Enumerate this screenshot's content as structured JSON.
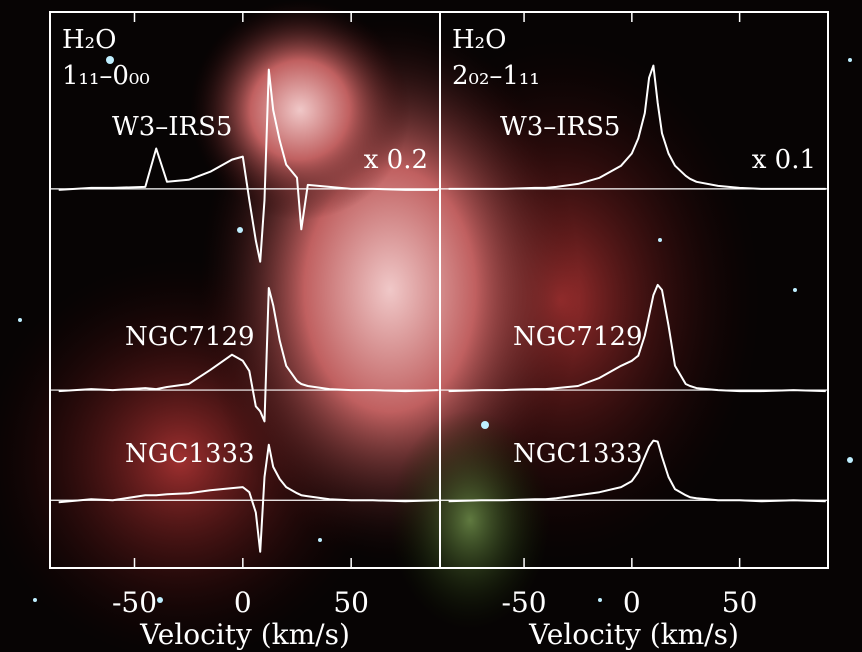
{
  "chart_data": [
    {
      "type": "line",
      "molecule": "H₂O",
      "transition": "1₁₁–0₀₀",
      "x_label": "Velocity (km/s)",
      "x": [
        -85,
        -70,
        -60,
        -45,
        -40,
        -35,
        -25,
        -15,
        -5,
        0,
        3,
        6,
        8,
        10,
        12,
        14,
        17,
        20,
        25,
        27,
        30,
        40,
        50,
        60,
        75,
        90
      ],
      "xlim": [
        -89,
        91
      ],
      "xticks": [
        -50,
        0,
        50
      ],
      "ylim": [
        0,
        5.5
      ],
      "series": [
        {
          "name": "W3–IRS5",
          "color": "#ffffff",
          "scale_label": "x 0.2",
          "baseline": 3.75,
          "values": [
            3.74,
            3.76,
            3.76,
            3.77,
            4.15,
            3.82,
            3.84,
            3.92,
            4.04,
            4.07,
            3.64,
            3.24,
            3.03,
            3.64,
            4.93,
            4.53,
            4.23,
            3.99,
            3.86,
            3.35,
            3.79,
            3.77,
            3.75,
            3.75,
            3.74,
            3.74
          ]
        },
        {
          "name": "NGC7129",
          "color": "#ffffff",
          "baseline": 1.76,
          "values": [
            1.75,
            1.77,
            1.76,
            1.78,
            1.77,
            1.79,
            1.82,
            1.96,
            2.11,
            2.05,
            1.95,
            1.6,
            1.55,
            1.45,
            2.77,
            2.6,
            2.25,
            2.0,
            1.85,
            1.82,
            1.8,
            1.77,
            1.76,
            1.76,
            1.75,
            1.76
          ]
        },
        {
          "name": "NGC1333",
          "color": "#ffffff",
          "baseline": 0.67,
          "values": [
            0.65,
            0.68,
            0.67,
            0.72,
            0.72,
            0.73,
            0.74,
            0.77,
            0.79,
            0.8,
            0.75,
            0.55,
            0.16,
            0.9,
            1.22,
            1.0,
            0.88,
            0.8,
            0.74,
            0.72,
            0.71,
            0.68,
            0.67,
            0.67,
            0.66,
            0.67
          ]
        }
      ]
    },
    {
      "type": "line",
      "molecule": "H₂O",
      "transition": "2₀₂–1₁₁",
      "x_label": "Velocity (km/s)",
      "x": [
        -85,
        -70,
        -60,
        -45,
        -40,
        -35,
        -25,
        -15,
        -5,
        0,
        3,
        6,
        8,
        10,
        12,
        14,
        17,
        20,
        25,
        27,
        30,
        40,
        50,
        60,
        75,
        90
      ],
      "xlim": [
        -89,
        91
      ],
      "xticks": [
        -50,
        0,
        50
      ],
      "ylim": [
        0,
        5.5
      ],
      "series": [
        {
          "name": "W3–IRS5",
          "color": "#ffffff",
          "scale_label": "x 0.1",
          "baseline": 3.75,
          "values": [
            3.75,
            3.75,
            3.75,
            3.76,
            3.76,
            3.77,
            3.8,
            3.86,
            3.98,
            4.1,
            4.25,
            4.5,
            4.85,
            4.97,
            4.6,
            4.3,
            4.1,
            3.98,
            3.88,
            3.85,
            3.82,
            3.78,
            3.76,
            3.75,
            3.75,
            3.75
          ]
        },
        {
          "name": "NGC7129",
          "color": "#ffffff",
          "baseline": 1.76,
          "values": [
            1.75,
            1.76,
            1.76,
            1.77,
            1.77,
            1.78,
            1.8,
            1.88,
            2.0,
            2.05,
            2.1,
            2.3,
            2.5,
            2.7,
            2.8,
            2.75,
            2.4,
            2.0,
            1.82,
            1.8,
            1.78,
            1.76,
            1.75,
            1.75,
            1.76,
            1.75
          ]
        },
        {
          "name": "NGC1333",
          "color": "#ffffff",
          "baseline": 0.67,
          "values": [
            0.66,
            0.67,
            0.67,
            0.68,
            0.68,
            0.69,
            0.72,
            0.75,
            0.8,
            0.86,
            0.95,
            1.1,
            1.2,
            1.26,
            1.25,
            1.1,
            0.9,
            0.78,
            0.72,
            0.7,
            0.69,
            0.67,
            0.67,
            0.66,
            0.67,
            0.66
          ]
        }
      ]
    }
  ]
}
